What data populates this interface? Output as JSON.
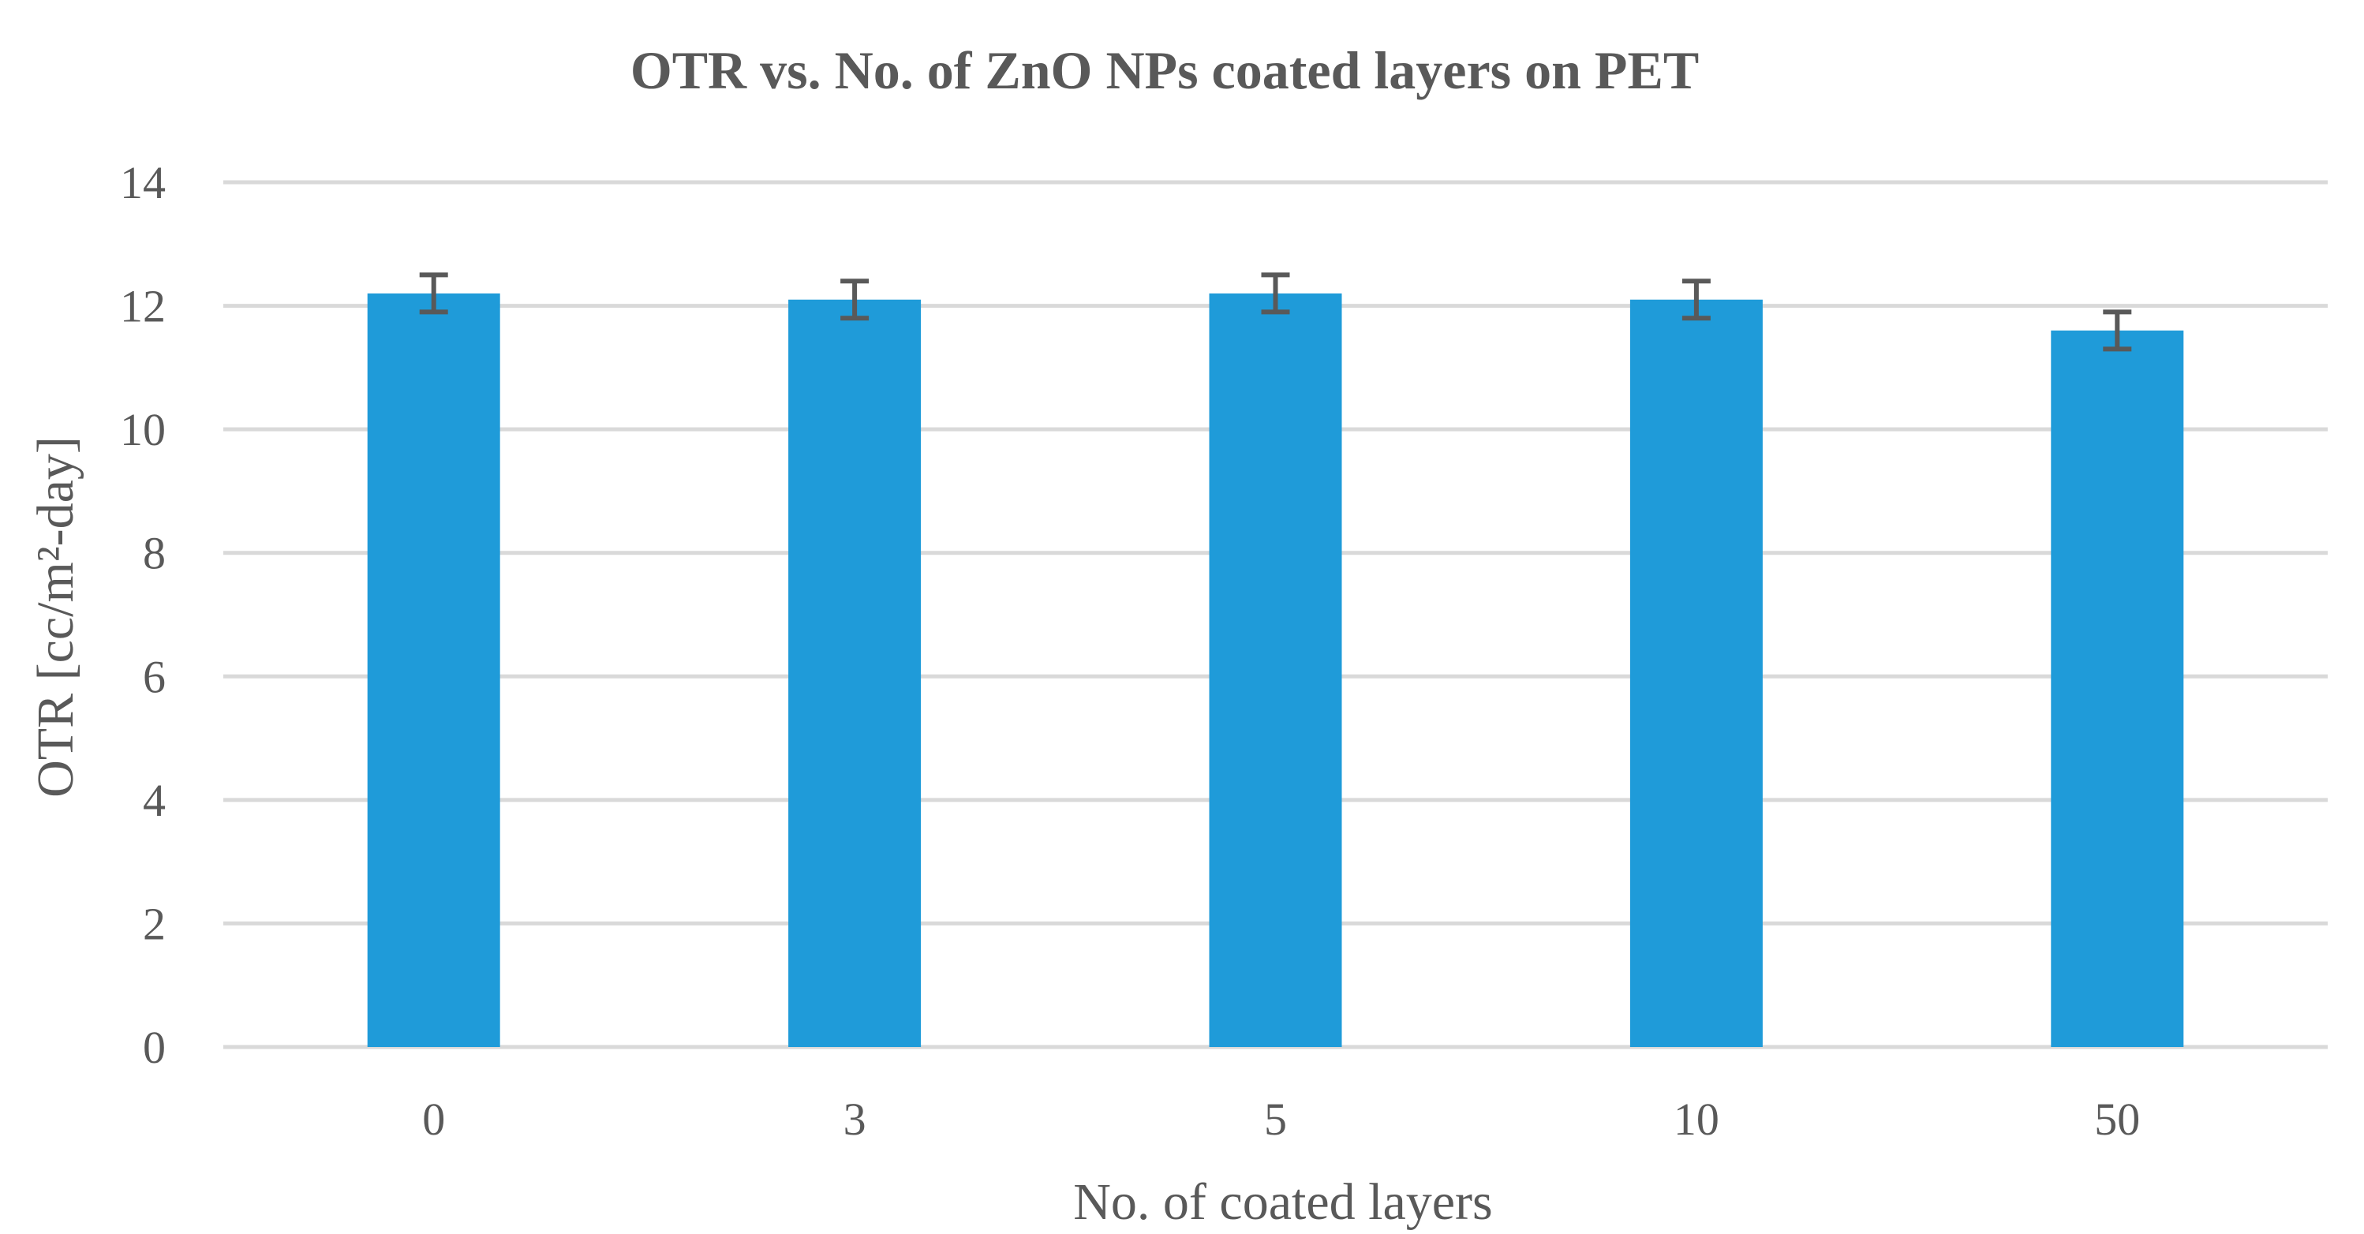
{
  "chart_data": {
    "type": "bar",
    "title": "OTR vs. No. of ZnO NPs coated layers on PET",
    "xlabel": "No. of coated layers",
    "ylabel": "OTR [cc/m²-day]",
    "categories": [
      "0",
      "3",
      "5",
      "10",
      "50"
    ],
    "values": [
      12.2,
      12.1,
      12.2,
      12.1,
      11.6
    ],
    "errors": [
      0.3,
      0.3,
      0.3,
      0.3,
      0.3
    ],
    "ylim": [
      0,
      14
    ],
    "yticks": [
      0,
      2,
      4,
      6,
      8,
      10,
      12,
      14
    ],
    "grid": true,
    "bar_color": "#1f9bd9",
    "error_bar_color": "#595959",
    "text_color": "#595959",
    "grid_color": "#d9d9d9"
  }
}
